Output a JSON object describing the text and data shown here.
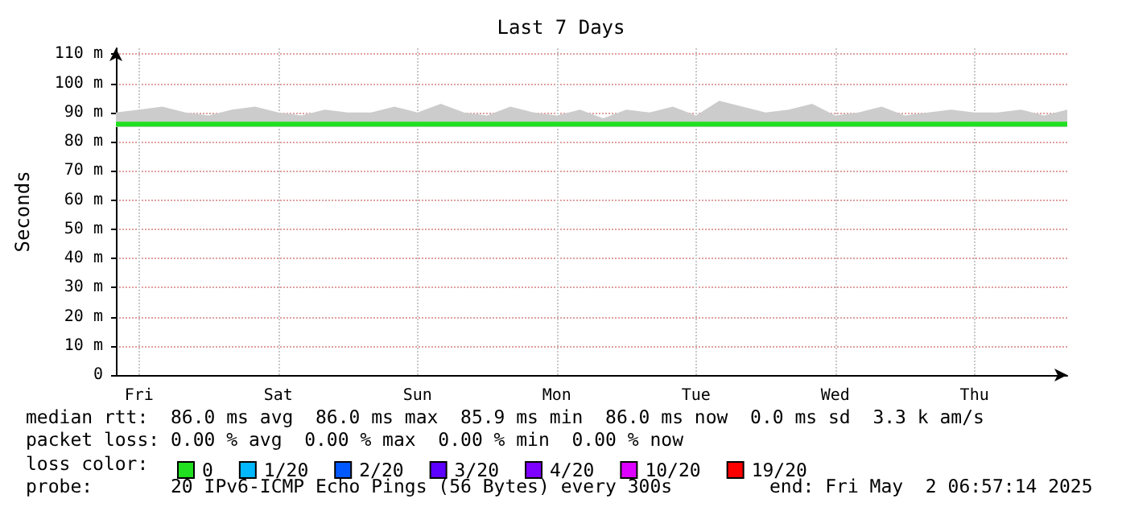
{
  "chart_data": {
    "type": "line",
    "title": "Last 7 Days",
    "ylabel": "Seconds",
    "legend_title": "loss color:",
    "legend": "bottom",
    "annotations": [
      "median rtt:  86.0 ms avg  86.0 ms max  85.9 ms min  86.0 ms now  0.0 ms sd  3.3 k am/s",
      "packet loss: 0.00 % avg  0.00 % max  0.00 % min  0.00 % now",
      "probe:       20 IPv6-ICMP Echo Pings (56 Bytes) every 300s",
      "end: Fri May  2 06:57:14 2025"
    ],
    "categories": [
      null,
      "Fri",
      null,
      null,
      null,
      null,
      null,
      "Sat",
      null,
      null,
      null,
      null,
      null,
      "Sun",
      null,
      null,
      null,
      null,
      null,
      "Mon",
      null,
      null,
      null,
      null,
      null,
      "Tue",
      null,
      null,
      null,
      null,
      null,
      "Wed",
      null,
      null,
      null,
      null,
      null,
      "Thu",
      null,
      null,
      null,
      null
    ],
    "series": [
      {
        "name": "0",
        "color": "#20e020",
        "values": [
          86,
          86,
          86,
          86,
          86,
          86,
          86,
          86,
          86,
          86,
          86,
          86,
          86,
          86,
          86,
          86,
          86,
          86,
          86,
          86,
          86,
          86,
          86,
          86,
          86,
          86,
          86,
          86,
          86,
          86,
          86,
          86,
          86,
          86,
          86,
          86,
          86,
          86,
          86,
          86,
          86,
          86
        ],
        "lower": [
          85,
          85,
          85,
          85,
          85,
          85,
          85,
          85,
          85,
          85,
          85,
          85,
          85,
          85,
          85,
          85,
          85,
          85,
          85,
          85,
          85,
          85,
          85,
          85,
          85,
          85,
          85,
          85,
          85,
          85,
          85,
          85,
          85,
          85,
          85,
          85,
          85,
          85,
          85,
          85,
          85,
          85
        ],
        "upper": [
          90,
          91,
          92,
          90,
          89,
          91,
          92,
          90,
          89,
          91,
          90,
          90,
          92,
          90,
          93,
          90,
          89,
          92,
          90,
          89,
          91,
          88,
          91,
          90,
          92,
          89,
          94,
          92,
          90,
          91,
          93,
          89,
          90,
          92,
          89,
          90,
          91,
          90,
          90,
          91,
          89,
          91
        ]
      },
      {
        "name": "1/20",
        "color": "#00b8ff",
        "values": [
          null,
          null,
          null,
          null,
          null,
          null,
          null,
          null,
          null,
          null,
          null,
          null,
          null,
          null,
          null,
          null,
          null,
          null,
          null,
          null,
          null,
          null,
          null,
          null,
          null,
          null,
          null,
          null,
          null,
          null,
          null,
          null,
          null,
          null,
          null,
          null,
          null,
          null,
          null,
          null,
          null,
          null
        ]
      },
      {
        "name": "2/20",
        "color": "#0059ff",
        "values": [
          null,
          null,
          null,
          null,
          null,
          null,
          null,
          null,
          null,
          null,
          null,
          null,
          null,
          null,
          null,
          null,
          null,
          null,
          null,
          null,
          null,
          null,
          null,
          null,
          null,
          null,
          null,
          null,
          null,
          null,
          null,
          null,
          null,
          null,
          null,
          null,
          null,
          null,
          null,
          null,
          null,
          null
        ]
      },
      {
        "name": "3/20",
        "color": "#5e00ff",
        "values": [
          null,
          null,
          null,
          null,
          null,
          null,
          null,
          null,
          null,
          null,
          null,
          null,
          null,
          null,
          null,
          null,
          null,
          null,
          null,
          null,
          null,
          null,
          null,
          null,
          null,
          null,
          null,
          null,
          null,
          null,
          null,
          null,
          null,
          null,
          null,
          null,
          null,
          null,
          null,
          null,
          null,
          null
        ]
      },
      {
        "name": "4/20",
        "color": "#7e00ff",
        "values": [
          null,
          null,
          null,
          null,
          null,
          null,
          null,
          null,
          null,
          null,
          null,
          null,
          null,
          null,
          null,
          null,
          null,
          null,
          null,
          null,
          null,
          null,
          null,
          null,
          null,
          null,
          null,
          null,
          null,
          null,
          null,
          null,
          null,
          null,
          null,
          null,
          null,
          null,
          null,
          null,
          null,
          null
        ]
      },
      {
        "name": "10/20",
        "color": "#dd00ff",
        "values": [
          null,
          null,
          null,
          null,
          null,
          null,
          null,
          null,
          null,
          null,
          null,
          null,
          null,
          null,
          null,
          null,
          null,
          null,
          null,
          null,
          null,
          null,
          null,
          null,
          null,
          null,
          null,
          null,
          null,
          null,
          null,
          null,
          null,
          null,
          null,
          null,
          null,
          null,
          null,
          null,
          null,
          null
        ]
      },
      {
        "name": "19/20",
        "color": "#ff0000",
        "values": [
          null,
          null,
          null,
          null,
          null,
          null,
          null,
          null,
          null,
          null,
          null,
          null,
          null,
          null,
          null,
          null,
          null,
          null,
          null,
          null,
          null,
          null,
          null,
          null,
          null,
          null,
          null,
          null,
          null,
          null,
          null,
          null,
          null,
          null,
          null,
          null,
          null,
          null,
          null,
          null,
          null,
          null
        ]
      }
    ],
    "ylim": [
      0,
      112
    ],
    "yticks": [
      0,
      {
        "value": 10,
        "label": "10 m"
      },
      {
        "value": 20,
        "label": "20 m"
      },
      {
        "value": 30,
        "label": "30 m"
      },
      {
        "value": 40,
        "label": "40 m"
      },
      {
        "value": 50,
        "label": "50 m"
      },
      {
        "value": 60,
        "label": "60 m"
      },
      {
        "value": 70,
        "label": "70 m"
      },
      {
        "value": 80,
        "label": "80 m"
      },
      {
        "value": 90,
        "label": "90 m"
      },
      {
        "value": 100,
        "label": "100 m"
      },
      {
        "value": 110,
        "label": "110 m"
      }
    ],
    "grid": true,
    "marker": "none"
  }
}
